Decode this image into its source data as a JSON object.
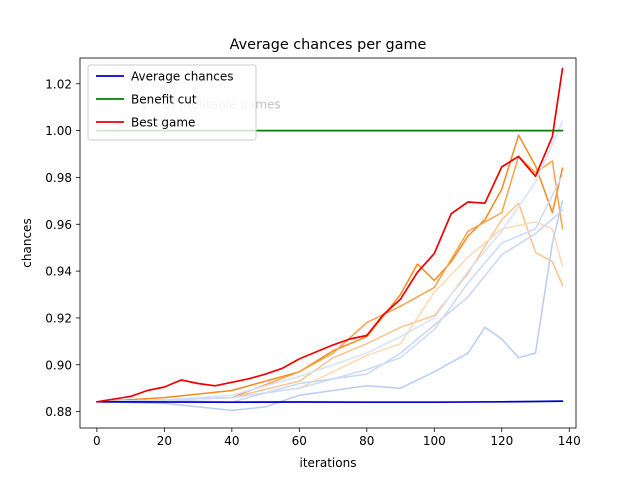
{
  "chart_data": {
    "type": "line",
    "title": "Average chances per game",
    "xlabel": "iterations",
    "ylabel": "chances",
    "xlim": [
      -5,
      142
    ],
    "ylim": [
      0.873,
      1.031
    ],
    "x_ticks": [
      0,
      20,
      40,
      60,
      80,
      100,
      120,
      140
    ],
    "y_ticks": [
      0.88,
      0.9,
      0.92,
      0.94,
      0.96,
      0.98,
      1.0,
      1.02
    ],
    "grid": false,
    "legend_position": "upper-left",
    "annotation": "1% of profitable games",
    "series": [
      {
        "name": "Average chances",
        "color": "#0000cc",
        "points": [
          [
            0,
            0.8842
          ],
          [
            20,
            0.8841
          ],
          [
            40,
            0.884
          ],
          [
            60,
            0.8841
          ],
          [
            80,
            0.884
          ],
          [
            100,
            0.884
          ],
          [
            120,
            0.8842
          ],
          [
            130,
            0.8843
          ],
          [
            138,
            0.8845
          ]
        ]
      },
      {
        "name": "Benefit cut",
        "color": "#008000",
        "points": [
          [
            0,
            1.0
          ],
          [
            138,
            1.0
          ]
        ]
      },
      {
        "name": "Best game",
        "color": "#ee0000",
        "points": [
          [
            0,
            0.8842
          ],
          [
            10,
            0.8865
          ],
          [
            15,
            0.889
          ],
          [
            20,
            0.8905
          ],
          [
            25,
            0.8935
          ],
          [
            30,
            0.892
          ],
          [
            35,
            0.891
          ],
          [
            40,
            0.8925
          ],
          [
            45,
            0.894
          ],
          [
            50,
            0.896
          ],
          [
            55,
            0.8985
          ],
          [
            60,
            0.9025
          ],
          [
            65,
            0.9055
          ],
          [
            70,
            0.9085
          ],
          [
            75,
            0.911
          ],
          [
            80,
            0.9125
          ],
          [
            85,
            0.9215
          ],
          [
            90,
            0.928
          ],
          [
            95,
            0.9395
          ],
          [
            100,
            0.9475
          ],
          [
            105,
            0.9645
          ],
          [
            110,
            0.9695
          ],
          [
            115,
            0.969
          ],
          [
            120,
            0.9845
          ],
          [
            125,
            0.989
          ],
          [
            130,
            0.9805
          ],
          [
            135,
            0.9975
          ],
          [
            138,
            1.0265
          ]
        ]
      },
      {
        "color": "#f58a1f",
        "points": [
          [
            0,
            0.8842
          ],
          [
            20,
            0.886
          ],
          [
            40,
            0.889
          ],
          [
            60,
            0.897
          ],
          [
            70,
            0.906
          ],
          [
            80,
            0.912
          ],
          [
            90,
            0.93
          ],
          [
            95,
            0.943
          ],
          [
            100,
            0.936
          ],
          [
            105,
            0.944
          ],
          [
            110,
            0.955
          ],
          [
            115,
            0.962
          ],
          [
            120,
            0.975
          ],
          [
            125,
            0.998
          ],
          [
            130,
            0.985
          ],
          [
            135,
            0.965
          ],
          [
            138,
            0.984
          ]
        ]
      },
      {
        "color": "#f9a24a",
        "points": [
          [
            0,
            0.8842
          ],
          [
            20,
            0.885
          ],
          [
            40,
            0.886
          ],
          [
            60,
            0.897
          ],
          [
            70,
            0.905
          ],
          [
            80,
            0.918
          ],
          [
            90,
            0.925
          ],
          [
            100,
            0.933
          ],
          [
            110,
            0.957
          ],
          [
            120,
            0.965
          ],
          [
            125,
            0.989
          ],
          [
            130,
            0.982
          ],
          [
            135,
            0.987
          ],
          [
            138,
            0.958
          ]
        ]
      },
      {
        "color": "#fbc48d",
        "points": [
          [
            0,
            0.8842
          ],
          [
            20,
            0.885
          ],
          [
            40,
            0.886
          ],
          [
            60,
            0.893
          ],
          [
            70,
            0.903
          ],
          [
            80,
            0.909
          ],
          [
            90,
            0.916
          ],
          [
            100,
            0.921
          ],
          [
            110,
            0.939
          ],
          [
            120,
            0.962
          ],
          [
            125,
            0.969
          ],
          [
            130,
            0.948
          ],
          [
            135,
            0.944
          ],
          [
            138,
            0.934
          ]
        ]
      },
      {
        "color": "#fdd9b4",
        "points": [
          [
            0,
            0.8842
          ],
          [
            20,
            0.885
          ],
          [
            40,
            0.886
          ],
          [
            60,
            0.89
          ],
          [
            80,
            0.904
          ],
          [
            90,
            0.909
          ],
          [
            100,
            0.931
          ],
          [
            110,
            0.946
          ],
          [
            120,
            0.958
          ],
          [
            130,
            0.961
          ],
          [
            135,
            0.958
          ],
          [
            138,
            0.942
          ]
        ]
      },
      {
        "color": "#d6e2fb",
        "points": [
          [
            0,
            0.8842
          ],
          [
            20,
            0.885
          ],
          [
            40,
            0.887
          ],
          [
            60,
            0.895
          ],
          [
            80,
            0.905
          ],
          [
            90,
            0.912
          ],
          [
            100,
            0.92
          ],
          [
            110,
            0.94
          ],
          [
            120,
            0.957
          ],
          [
            130,
            0.978
          ],
          [
            138,
            1.004
          ]
        ]
      },
      {
        "color": "#c7d5f7",
        "points": [
          [
            0,
            0.8842
          ],
          [
            20,
            0.885
          ],
          [
            40,
            0.884
          ],
          [
            60,
            0.892
          ],
          [
            80,
            0.896
          ],
          [
            90,
            0.905
          ],
          [
            100,
            0.917
          ],
          [
            110,
            0.929
          ],
          [
            120,
            0.947
          ],
          [
            130,
            0.956
          ],
          [
            138,
            0.966
          ]
        ]
      },
      {
        "color": "#b9ccf6",
        "points": [
          [
            0,
            0.8842
          ],
          [
            20,
            0.8835
          ],
          [
            40,
            0.8805
          ],
          [
            50,
            0.882
          ],
          [
            60,
            0.887
          ],
          [
            70,
            0.889
          ],
          [
            80,
            0.891
          ],
          [
            90,
            0.89
          ],
          [
            100,
            0.897
          ],
          [
            110,
            0.905
          ],
          [
            115,
            0.916
          ],
          [
            120,
            0.911
          ],
          [
            125,
            0.903
          ],
          [
            130,
            0.905
          ],
          [
            135,
            0.952
          ],
          [
            138,
            0.97
          ]
        ]
      },
      {
        "color": "#ccdaf8",
        "points": [
          [
            0,
            0.8842
          ],
          [
            20,
            0.885
          ],
          [
            40,
            0.886
          ],
          [
            60,
            0.89
          ],
          [
            80,
            0.898
          ],
          [
            90,
            0.903
          ],
          [
            100,
            0.915
          ],
          [
            110,
            0.935
          ],
          [
            120,
            0.952
          ],
          [
            130,
            0.958
          ],
          [
            138,
            0.981
          ]
        ]
      }
    ]
  }
}
